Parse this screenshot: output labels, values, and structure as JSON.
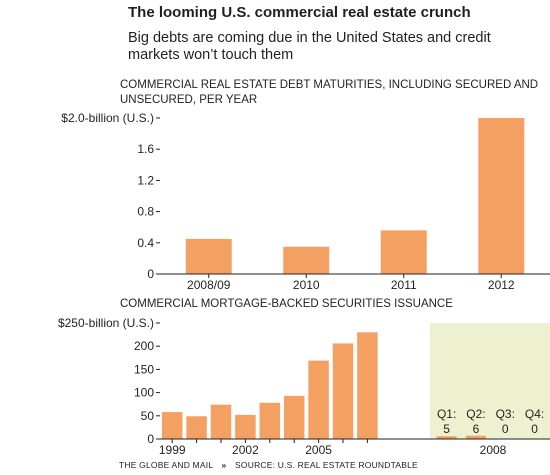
{
  "header": {
    "title": "The looming U.S. commercial real estate crunch",
    "subtitle": "Big debts are coming due in the United States and credit markets won’t touch them"
  },
  "footer": {
    "publisher": "THE GLOBE AND MAIL",
    "separator": "»",
    "source": "SOURCE: U.S. REAL ESTATE ROUNDTABLE"
  },
  "colors": {
    "bar": "#f5a063",
    "highlight_region": "#eef1cf",
    "axis": "#231f20"
  },
  "chart_data": [
    {
      "type": "bar",
      "title": "COMMERCIAL REAL ESTATE DEBT MATURITIES, INCLUDING SECURED AND UNSECURED, PER YEAR",
      "categories": [
        "2008/09",
        "2010",
        "2011",
        "2012"
      ],
      "values": [
        0.45,
        0.35,
        0.56,
        2.0
      ],
      "ylim": [
        0,
        2.0
      ],
      "yticks": [
        "0",
        "0.4",
        "0.8",
        "1.2",
        "1.6",
        "$2.0-billion (U.S.)"
      ],
      "ytick_values": [
        0,
        0.4,
        0.8,
        1.2,
        1.6,
        2.0
      ],
      "grid": false
    },
    {
      "type": "bar",
      "title": "COMMERCIAL MORTGAGE-BACKED SECURITIES ISSUANCE",
      "categories": [
        "1999",
        "2000",
        "2001",
        "2002",
        "2003",
        "2004",
        "2005",
        "2006",
        "2007",
        "Q1",
        "Q2",
        "Q3",
        "Q4"
      ],
      "values": [
        58,
        49,
        74,
        52,
        78,
        93,
        169,
        206,
        230,
        5,
        6,
        0,
        0
      ],
      "ylim": [
        0,
        250
      ],
      "yticks": [
        "0",
        "50",
        "100",
        "150",
        "200",
        "$250-billion (U.S.)"
      ],
      "ytick_values": [
        0,
        50,
        100,
        150,
        200,
        250
      ],
      "xtick_labels": [
        "1999",
        "2002",
        "2005",
        "2008"
      ],
      "quarter_labels": [
        "Q1:",
        "Q2:",
        "Q3:",
        "Q4:"
      ],
      "quarter_values": [
        "5",
        "6",
        "0",
        "0"
      ],
      "highlight": "2008",
      "grid": false
    }
  ]
}
